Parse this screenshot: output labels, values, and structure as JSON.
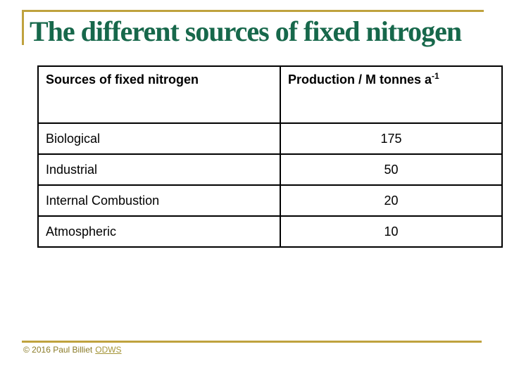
{
  "title": "The different sources of fixed nitrogen",
  "colors": {
    "title_green": "#17684b",
    "accent_gold": "#bfa23e",
    "footer_olive": "#8a7b28",
    "table_border": "#000000",
    "background": "#ffffff"
  },
  "table": {
    "headers": [
      "Sources of fixed nitrogen",
      {
        "text": "Production / M tonnes a",
        "sup": "-1"
      }
    ],
    "rows": [
      {
        "label": "Biological",
        "value": "175"
      },
      {
        "label": "Industrial",
        "value": "50"
      },
      {
        "label": "Internal Combustion",
        "value": "20"
      },
      {
        "label": "Atmospheric",
        "value": "10"
      }
    ]
  },
  "footer": {
    "copyright": "© 2016 Paul Billiet",
    "link": "ODWS"
  }
}
